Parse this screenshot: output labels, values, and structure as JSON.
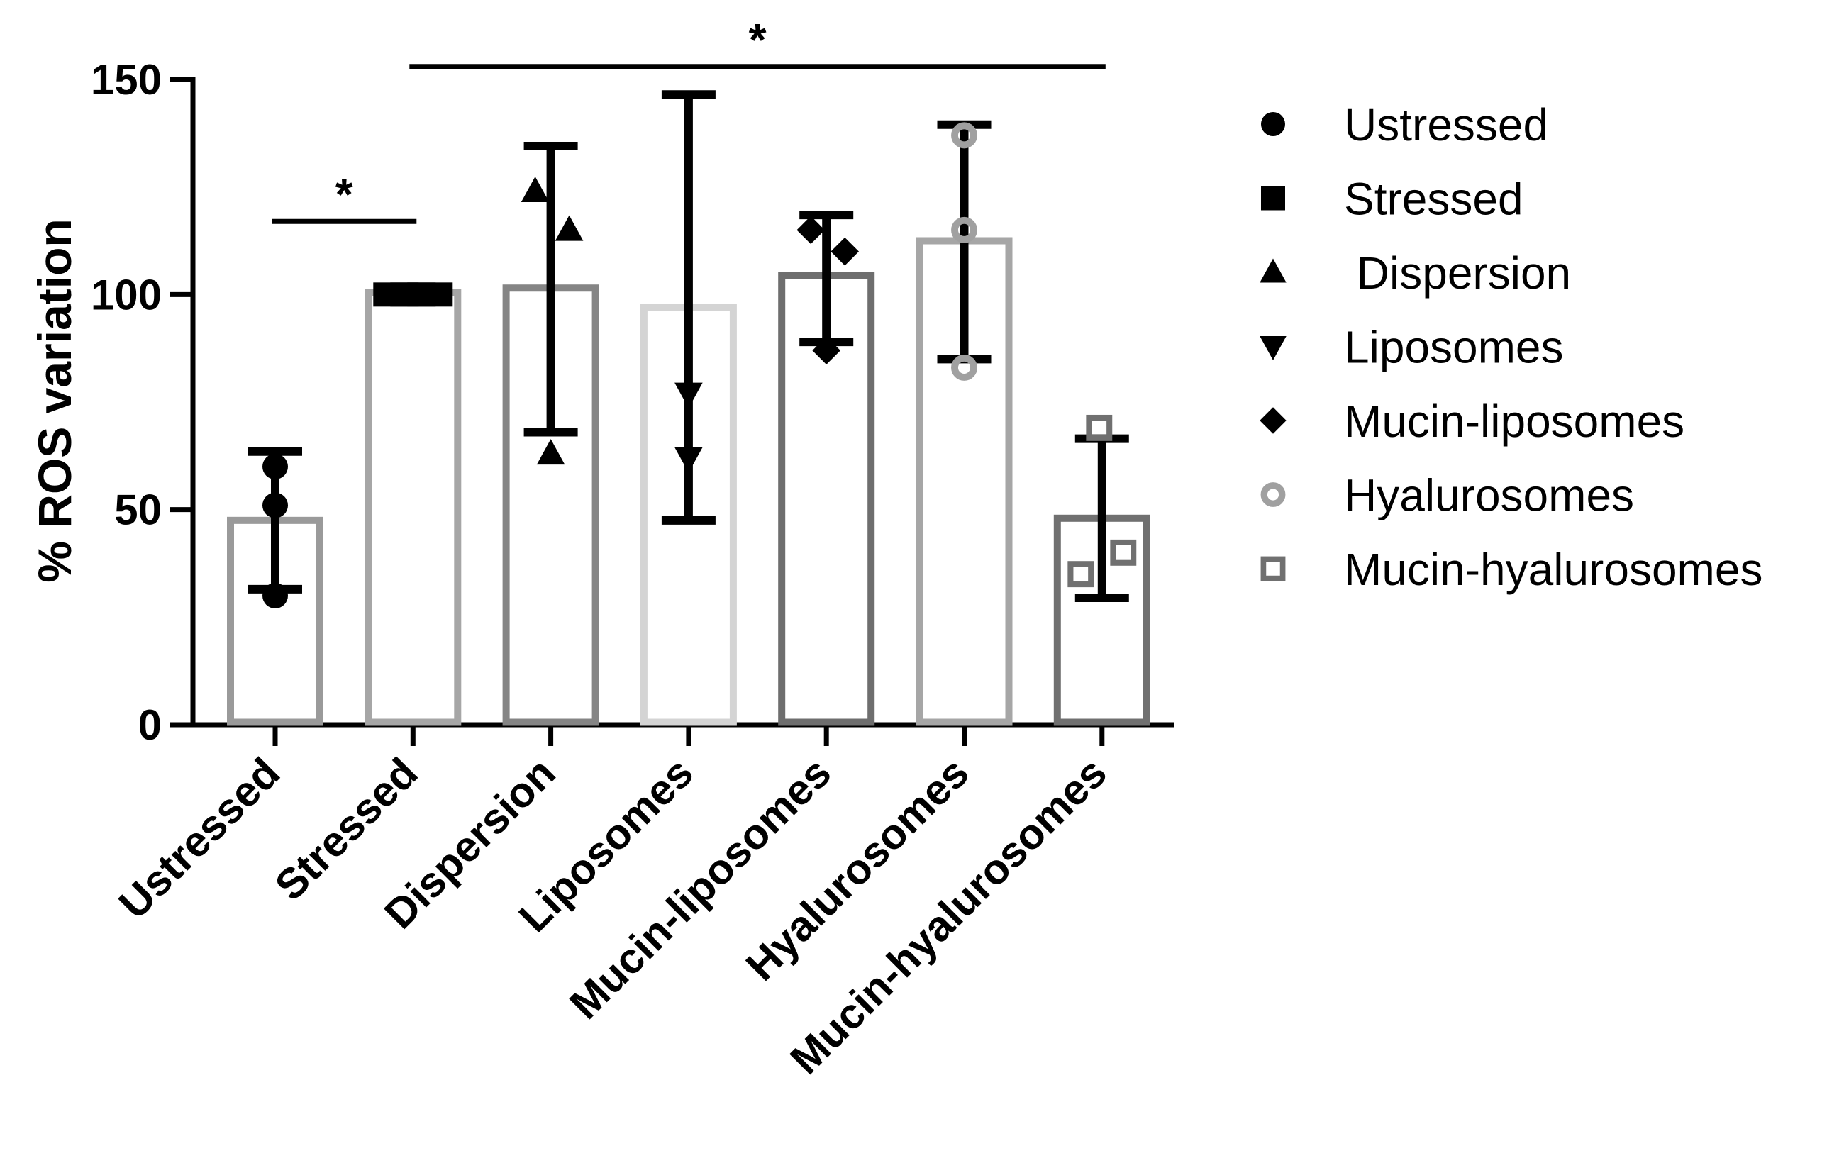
{
  "chart_data": {
    "type": "bar",
    "title": "",
    "xlabel": "",
    "ylabel": "% ROS variation",
    "ylim": [
      0,
      150
    ],
    "yticks": [
      0,
      50,
      100,
      150
    ],
    "grid": false,
    "legend_position": "right",
    "categories": [
      "Ustressed",
      "Stressed",
      "Dispersion",
      "Liposomes",
      "Mucin-liposomes",
      "Hyalurosomes",
      "Mucin-hyalurosomes"
    ],
    "legend": [
      "Ustressed",
      "Stressed",
      " Dispersion",
      "Liposomes",
      "Mucin-liposomes",
      "Hyalurosomes",
      "Mucin-hyalurosomes"
    ],
    "series": [
      {
        "name": "Ustressed",
        "mean": 47.5,
        "sd_low": 31.5,
        "sd_high": 63.5,
        "points": [
          60,
          51,
          30
        ],
        "marker": "circle",
        "bar_color": "#9a9a9a",
        "marker_color": "#000000"
      },
      {
        "name": "Stressed",
        "mean": 100.5,
        "sd_low": 100,
        "sd_high": 101,
        "points": [
          100,
          100,
          100
        ],
        "marker": "square",
        "bar_color": "#a6a6a6",
        "marker_color": "#000000"
      },
      {
        "name": "Dispersion",
        "mean": 101.5,
        "sd_low": 68,
        "sd_high": 134.5,
        "points": [
          124,
          115,
          63
        ],
        "marker": "triangle-up",
        "bar_color": "#858585",
        "marker_color": "#000000"
      },
      {
        "name": "Liposomes",
        "mean": 97,
        "sd_low": 47.5,
        "sd_high": 146.5,
        "points": [
          77,
          62
        ],
        "marker": "triangle-down",
        "bar_color": "#d4d4d4",
        "marker_color": "#000000"
      },
      {
        "name": "Mucin-liposomes",
        "mean": 104.5,
        "sd_low": 89,
        "sd_high": 118.5,
        "points": [
          115,
          110,
          87
        ],
        "marker": "diamond",
        "bar_color": "#6e6e6e",
        "marker_color": "#000000"
      },
      {
        "name": "Hyalurosomes",
        "mean": 112.5,
        "sd_low": 85,
        "sd_high": 139.5,
        "points": [
          137,
          115,
          83
        ],
        "marker": "circle-open",
        "bar_color": "#a6a6a6",
        "marker_color": "#a0a0a0"
      },
      {
        "name": "Mucin-hyalurosomes",
        "mean": 48,
        "sd_low": 29.5,
        "sd_high": 66.5,
        "points": [
          69,
          40,
          35
        ],
        "marker": "square-open",
        "bar_color": "#707070",
        "marker_color": "#707070"
      }
    ],
    "significance": [
      {
        "from": 0,
        "to": 1,
        "y": 117,
        "label": "*"
      },
      {
        "from": 1,
        "to": 6,
        "y": 153,
        "label": "*"
      }
    ]
  }
}
